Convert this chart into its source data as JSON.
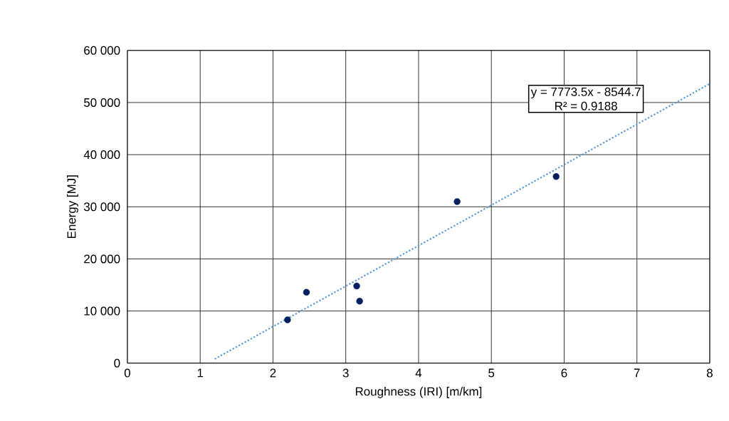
{
  "chart_data": {
    "type": "scatter",
    "xlabel": "Roughness (IRI) [m/km]",
    "ylabel": "Energy [MJ]",
    "xlim": [
      0,
      8
    ],
    "xticks": [
      0,
      1,
      2,
      3,
      4,
      5,
      6,
      7,
      8
    ],
    "ylim": [
      0,
      60000
    ],
    "yticks": [
      {
        "value": 0,
        "label": "0"
      },
      {
        "value": 10000,
        "label": "10 000"
      },
      {
        "value": 20000,
        "label": "20 000"
      },
      {
        "value": 30000,
        "label": "30 000"
      },
      {
        "value": 40000,
        "label": "40 000"
      },
      {
        "value": 50000,
        "label": "50 000"
      },
      {
        "value": 60000,
        "label": "60 000"
      }
    ],
    "grid": true,
    "marker": "circle",
    "series": [
      {
        "color": "#002060",
        "x": [
          2.2,
          2.46,
          3.15,
          3.19,
          4.53,
          5.89
        ],
        "values": [
          8300,
          13600,
          14800,
          11900,
          31000,
          35800
        ]
      },
      {
        "type": "line",
        "line_style": "dotted",
        "marker": "none",
        "color": "#5b9bd5",
        "x": [
          1.2,
          8
        ],
        "values": [
          800,
          53600
        ]
      }
    ],
    "annotations": [
      "y = 7773.5x - 8544.7",
      "R² = 0.9188"
    ]
  }
}
